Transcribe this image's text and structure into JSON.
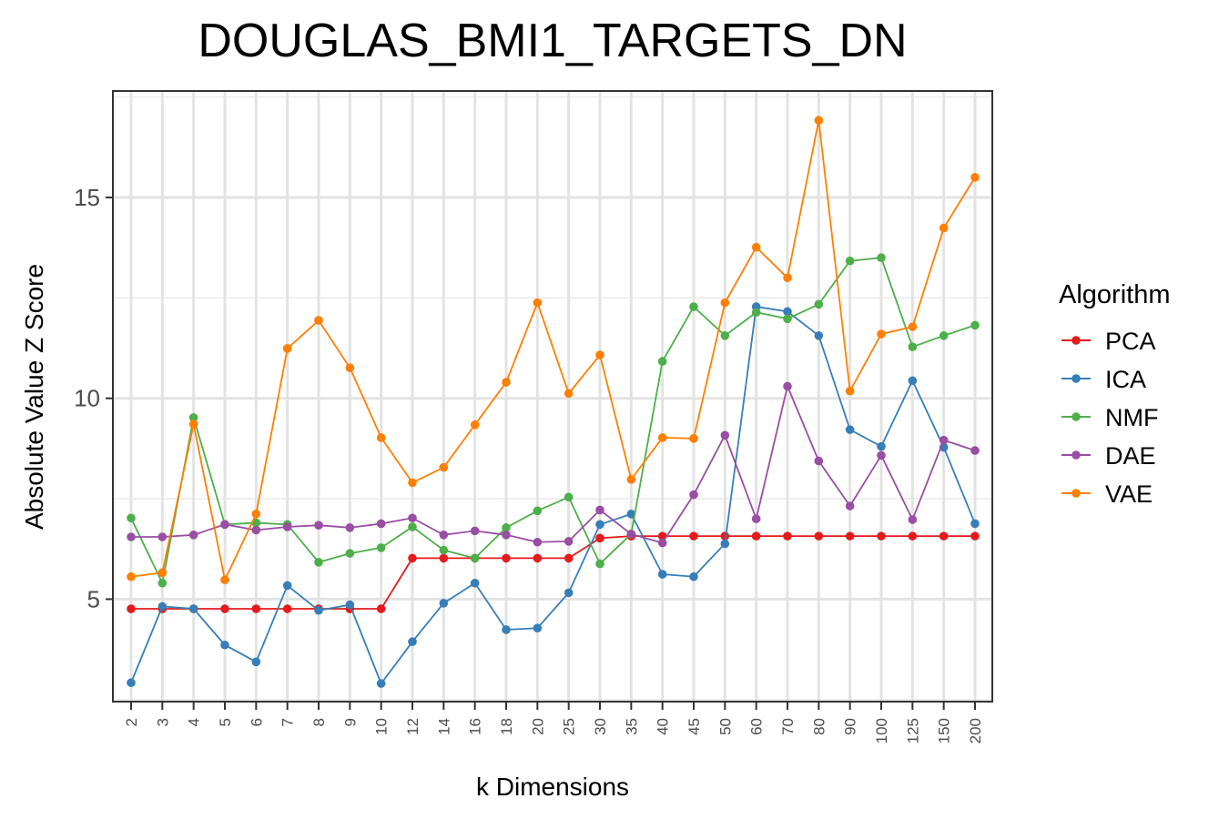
{
  "chart_data": {
    "type": "line",
    "title": "DOUGLAS_BMI1_TARGETS_DN",
    "xlabel": "k Dimensions",
    "ylabel": "Absolute Value Z Score",
    "categories": [
      "2",
      "3",
      "4",
      "5",
      "6",
      "7",
      "8",
      "9",
      "10",
      "12",
      "14",
      "16",
      "18",
      "20",
      "25",
      "30",
      "35",
      "40",
      "45",
      "50",
      "60",
      "70",
      "80",
      "90",
      "100",
      "125",
      "150",
      "200"
    ],
    "ylim": [
      2.45,
      17.65
    ],
    "yticks": [
      5,
      10,
      15
    ],
    "grid": true,
    "legend": {
      "title": "Algorithm",
      "position": "right"
    },
    "series": [
      {
        "name": "PCA",
        "color": "#e41a1c",
        "values": [
          4.76,
          4.76,
          4.76,
          4.76,
          4.76,
          4.76,
          4.76,
          4.76,
          4.76,
          6.02,
          6.02,
          6.02,
          6.02,
          6.02,
          6.02,
          6.52,
          6.57,
          6.57,
          6.57,
          6.57,
          6.57,
          6.57,
          6.57,
          6.57,
          6.57,
          6.57,
          6.57,
          6.57
        ]
      },
      {
        "name": "ICA",
        "color": "#377eb8",
        "values": [
          2.92,
          4.82,
          4.76,
          3.86,
          3.44,
          5.34,
          4.72,
          4.86,
          2.9,
          3.94,
          4.9,
          5.4,
          4.24,
          4.28,
          5.16,
          6.86,
          7.12,
          5.62,
          5.56,
          6.38,
          12.28,
          12.16,
          11.56,
          9.22,
          8.8,
          10.44,
          8.78,
          6.88
        ]
      },
      {
        "name": "NMF",
        "color": "#4daf4a",
        "values": [
          7.02,
          5.4,
          9.52,
          6.86,
          6.9,
          6.86,
          5.92,
          6.14,
          6.28,
          6.8,
          6.22,
          6.02,
          6.78,
          7.2,
          7.54,
          5.88,
          6.62,
          10.92,
          12.28,
          11.56,
          12.14,
          11.98,
          12.34,
          13.42,
          13.5,
          11.28,
          11.56,
          11.82
        ]
      },
      {
        "name": "DAE",
        "color": "#984ea3",
        "values": [
          6.55,
          6.55,
          6.6,
          6.86,
          6.72,
          6.8,
          6.84,
          6.78,
          6.88,
          7.02,
          6.6,
          6.7,
          6.6,
          6.42,
          6.44,
          7.22,
          6.62,
          6.4,
          7.6,
          9.08,
          7.0,
          10.3,
          8.44,
          7.32,
          8.58,
          6.98,
          8.96,
          8.7
        ]
      },
      {
        "name": "VAE",
        "color": "#ff7f00",
        "values": [
          5.56,
          5.66,
          9.36,
          5.48,
          7.12,
          11.24,
          11.94,
          10.76,
          9.02,
          7.9,
          8.28,
          9.34,
          10.4,
          12.38,
          10.12,
          11.08,
          7.98,
          9.02,
          9.0,
          12.38,
          13.76,
          13.0,
          16.92,
          10.18,
          11.6,
          11.78,
          14.24,
          15.5
        ]
      }
    ]
  }
}
